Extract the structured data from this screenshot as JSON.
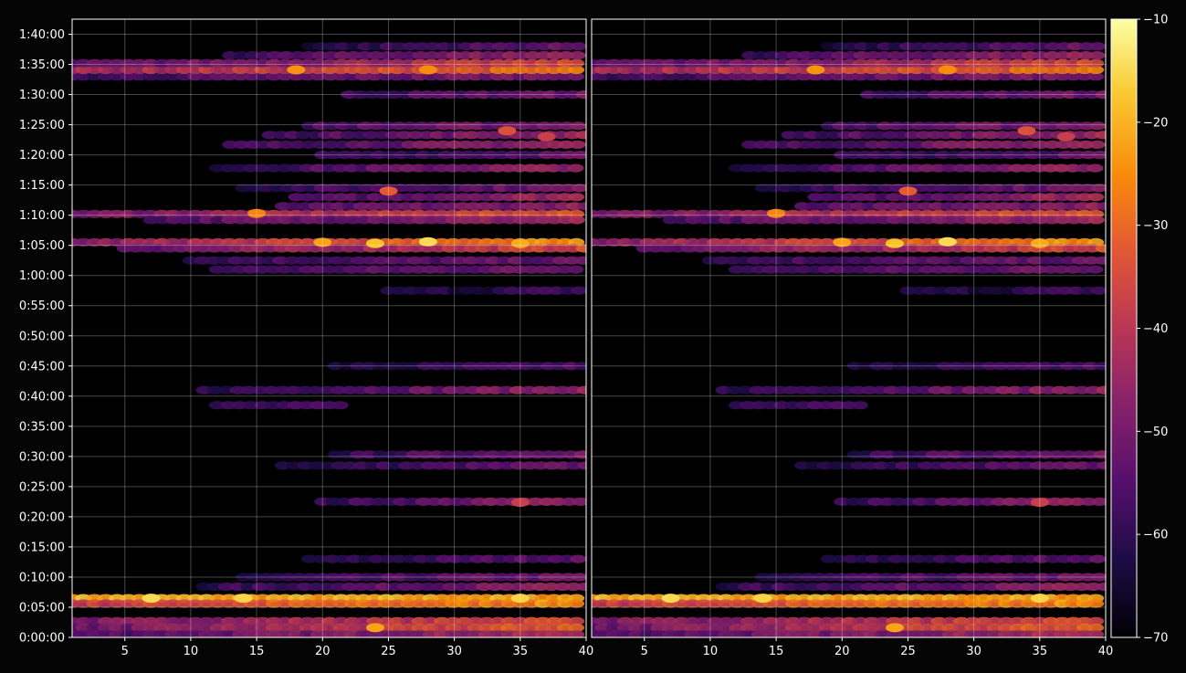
{
  "chart_data": {
    "type": "heatmap",
    "title": "",
    "xlabel": "",
    "ylabel": "",
    "grid": true,
    "colormap": "inferno",
    "panels": [
      {
        "name": "left",
        "xlim": [
          1,
          40
        ],
        "x_ticks": [
          5,
          10,
          15,
          20,
          25,
          30,
          35,
          40
        ]
      },
      {
        "name": "right",
        "xlim": [
          1,
          40
        ],
        "x_ticks": [
          5,
          10,
          15,
          20,
          25,
          30,
          35,
          40
        ]
      }
    ],
    "y_axis": {
      "unit": "h:mm:ss",
      "ylim_minutes": [
        0,
        102.5
      ],
      "ticks": [
        {
          "minutes": 0,
          "label": "0:00:00"
        },
        {
          "minutes": 5,
          "label": "0:05:00"
        },
        {
          "minutes": 10,
          "label": "0:10:00"
        },
        {
          "minutes": 15,
          "label": "0:15:00"
        },
        {
          "minutes": 20,
          "label": "0:20:00"
        },
        {
          "minutes": 25,
          "label": "0:25:00"
        },
        {
          "minutes": 30,
          "label": "0:30:00"
        },
        {
          "minutes": 35,
          "label": "0:35:00"
        },
        {
          "minutes": 40,
          "label": "0:40:00"
        },
        {
          "minutes": 45,
          "label": "0:45:00"
        },
        {
          "minutes": 50,
          "label": "0:50:00"
        },
        {
          "minutes": 55,
          "label": "0:55:00"
        },
        {
          "minutes": 60,
          "label": "1:00:00"
        },
        {
          "minutes": 65,
          "label": "1:05:00"
        },
        {
          "minutes": 70,
          "label": "1:10:00"
        },
        {
          "minutes": 75,
          "label": "1:15:00"
        },
        {
          "minutes": 80,
          "label": "1:20:00"
        },
        {
          "minutes": 85,
          "label": "1:25:00"
        },
        {
          "minutes": 90,
          "label": "1:30:00"
        },
        {
          "minutes": 95,
          "label": "1:35:00"
        },
        {
          "minutes": 100,
          "label": "1:40:00"
        }
      ]
    },
    "colorbar": {
      "range": [
        -70,
        -10
      ],
      "ticks": [
        -10,
        -20,
        -30,
        -40,
        -50,
        -60,
        -70
      ]
    },
    "bands": [
      {
        "minutes": 6.5,
        "x_start": 1,
        "x_end": 40,
        "level_start": -20,
        "level_end": -22
      },
      {
        "minutes": 5.6,
        "x_start": 1,
        "x_end": 40,
        "level_start": -38,
        "level_end": -24
      },
      {
        "minutes": 2.7,
        "x_start": 1,
        "x_end": 40,
        "level_start": -50,
        "level_end": -33
      },
      {
        "minutes": 1.6,
        "x_start": 1,
        "x_end": 40,
        "level_start": -52,
        "level_end": -30
      },
      {
        "minutes": 0.5,
        "x_start": 1,
        "x_end": 40,
        "level_start": -55,
        "level_end": -42
      },
      {
        "minutes": 8.4,
        "x_start": 11,
        "x_end": 40,
        "level_start": -60,
        "level_end": -46
      },
      {
        "minutes": 10.0,
        "x_start": 14,
        "x_end": 40,
        "level_start": -62,
        "level_end": -50
      },
      {
        "minutes": 13.0,
        "x_start": 19,
        "x_end": 40,
        "level_start": -63,
        "level_end": -52
      },
      {
        "minutes": 22.5,
        "x_start": 20,
        "x_end": 40,
        "level_start": -60,
        "level_end": -44
      },
      {
        "minutes": 28.5,
        "x_start": 17,
        "x_end": 40,
        "level_start": -62,
        "level_end": -52
      },
      {
        "minutes": 30.3,
        "x_start": 21,
        "x_end": 40,
        "level_start": -60,
        "level_end": -48
      },
      {
        "minutes": 38.5,
        "x_start": 12,
        "x_end": 22,
        "level_start": -60,
        "level_end": -58
      },
      {
        "minutes": 41.0,
        "x_start": 11,
        "x_end": 40,
        "level_start": -60,
        "level_end": -45
      },
      {
        "minutes": 45.0,
        "x_start": 21,
        "x_end": 40,
        "level_start": -64,
        "level_end": -56
      },
      {
        "minutes": 57.5,
        "x_start": 25,
        "x_end": 40,
        "level_start": -64,
        "level_end": -58
      },
      {
        "minutes": 61.0,
        "x_start": 12,
        "x_end": 40,
        "level_start": -58,
        "level_end": -50
      },
      {
        "minutes": 62.5,
        "x_start": 10,
        "x_end": 40,
        "level_start": -58,
        "level_end": -52
      },
      {
        "minutes": 65.5,
        "x_start": 1,
        "x_end": 40,
        "level_start": -48,
        "level_end": -22
      },
      {
        "minutes": 64.5,
        "x_start": 5,
        "x_end": 40,
        "level_start": -52,
        "level_end": -35
      },
      {
        "minutes": 70.2,
        "x_start": 1,
        "x_end": 40,
        "level_start": -50,
        "level_end": -32
      },
      {
        "minutes": 69.2,
        "x_start": 7,
        "x_end": 40,
        "level_start": -55,
        "level_end": -44
      },
      {
        "minutes": 71.5,
        "x_start": 17,
        "x_end": 40,
        "level_start": -56,
        "level_end": -46
      },
      {
        "minutes": 73.0,
        "x_start": 18,
        "x_end": 40,
        "level_start": -58,
        "level_end": -42
      },
      {
        "minutes": 74.5,
        "x_start": 14,
        "x_end": 40,
        "level_start": -60,
        "level_end": -50
      },
      {
        "minutes": 77.8,
        "x_start": 12,
        "x_end": 40,
        "level_start": -60,
        "level_end": -44
      },
      {
        "minutes": 80.0,
        "x_start": 20,
        "x_end": 40,
        "level_start": -60,
        "level_end": -52
      },
      {
        "minutes": 81.7,
        "x_start": 13,
        "x_end": 40,
        "level_start": -58,
        "level_end": -44
      },
      {
        "minutes": 83.3,
        "x_start": 16,
        "x_end": 40,
        "level_start": -58,
        "level_end": -44
      },
      {
        "minutes": 84.8,
        "x_start": 19,
        "x_end": 40,
        "level_start": -56,
        "level_end": -48
      },
      {
        "minutes": 90.0,
        "x_start": 22,
        "x_end": 40,
        "level_start": -58,
        "level_end": -50
      },
      {
        "minutes": 93.0,
        "x_start": 1,
        "x_end": 40,
        "level_start": -58,
        "level_end": -48
      },
      {
        "minutes": 94.1,
        "x_start": 1,
        "x_end": 40,
        "level_start": -44,
        "level_end": -28
      },
      {
        "minutes": 95.2,
        "x_start": 1,
        "x_end": 40,
        "level_start": -55,
        "level_end": -35
      },
      {
        "minutes": 96.5,
        "x_start": 13,
        "x_end": 40,
        "level_start": -58,
        "level_end": -44
      },
      {
        "minutes": 98.0,
        "x_start": 19,
        "x_end": 40,
        "level_start": -62,
        "level_end": -52
      }
    ],
    "hotspots": [
      {
        "x": 7,
        "minutes": 6.5,
        "level": -15
      },
      {
        "x": 14,
        "minutes": 6.5,
        "level": -16
      },
      {
        "x": 24,
        "minutes": 1.6,
        "level": -22
      },
      {
        "x": 35,
        "minutes": 6.5,
        "level": -16
      },
      {
        "x": 28,
        "minutes": 65.6,
        "level": -15
      },
      {
        "x": 24,
        "minutes": 65.3,
        "level": -18
      },
      {
        "x": 35,
        "minutes": 65.3,
        "level": -21
      },
      {
        "x": 20,
        "minutes": 65.5,
        "level": -22
      },
      {
        "x": 15,
        "minutes": 70.3,
        "level": -26
      },
      {
        "x": 18,
        "minutes": 94.1,
        "level": -24
      },
      {
        "x": 28,
        "minutes": 94.1,
        "level": -25
      },
      {
        "x": 25,
        "minutes": 74.0,
        "level": -32
      },
      {
        "x": 35,
        "minutes": 22.4,
        "level": -38
      },
      {
        "x": 34,
        "minutes": 84.0,
        "level": -34
      },
      {
        "x": 37,
        "minutes": 83.0,
        "level": -38
      }
    ]
  }
}
